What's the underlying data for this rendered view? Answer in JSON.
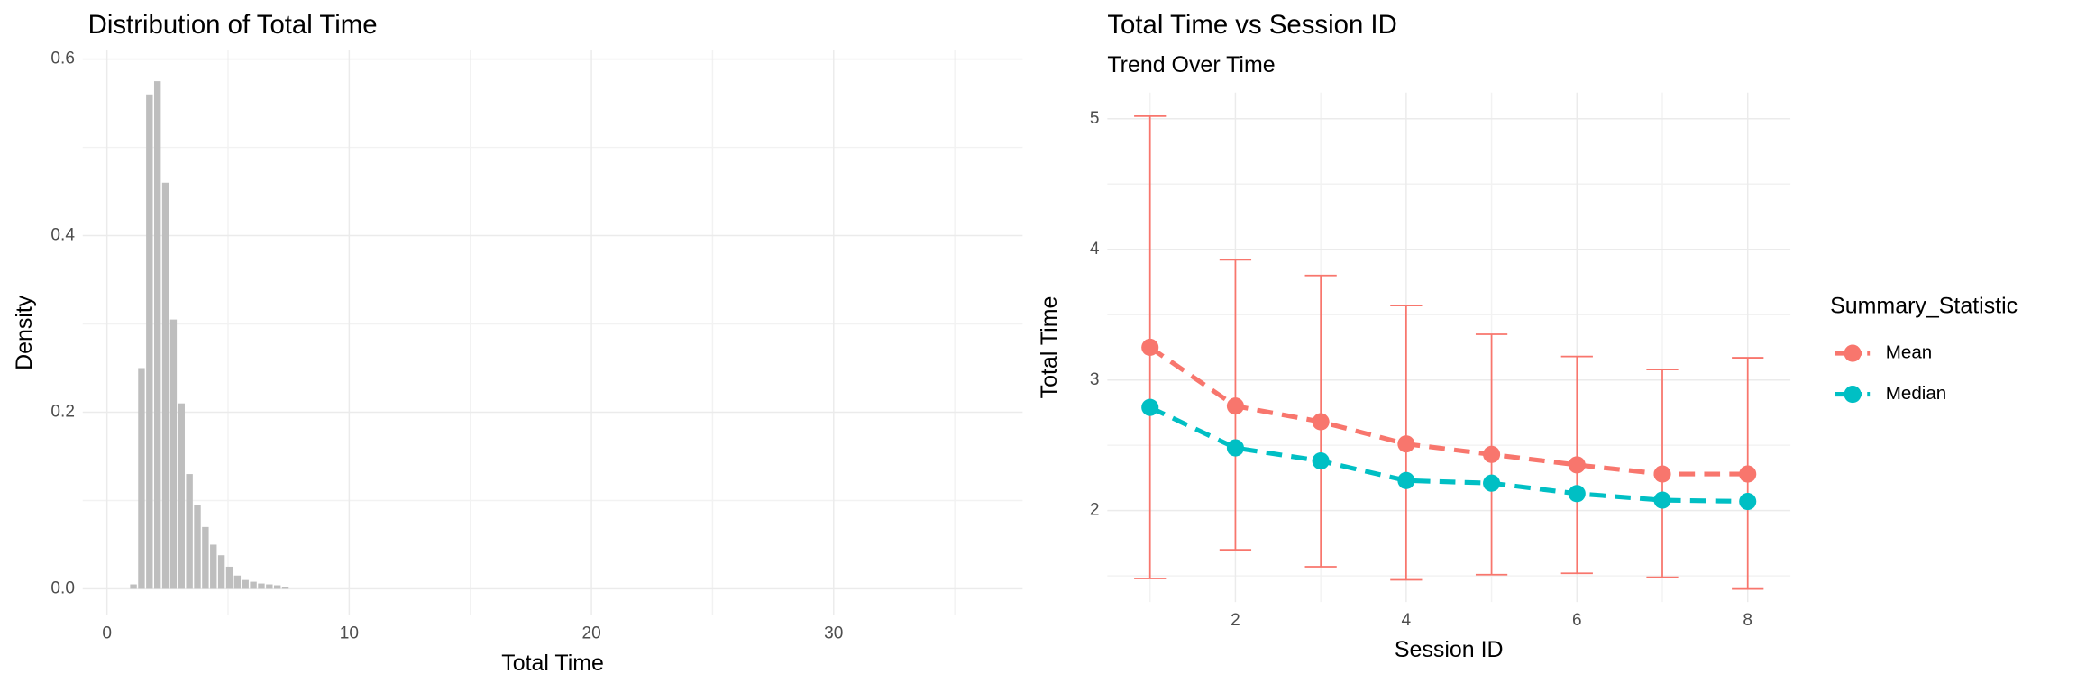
{
  "chart_data": [
    {
      "type": "histogram",
      "title": "Distribution of Total Time",
      "x_label": "Total Time",
      "y_label": "Density",
      "bins": [
        0.93,
        1.26,
        1.59,
        1.92,
        2.25,
        2.58,
        2.91,
        3.24,
        3.57,
        3.9,
        4.23,
        4.56,
        4.89,
        5.22,
        5.55,
        5.88,
        6.21,
        6.54,
        6.87,
        7.2,
        7.53
      ],
      "values": [
        0.005,
        0.25,
        0.56,
        0.575,
        0.46,
        0.305,
        0.21,
        0.13,
        0.095,
        0.07,
        0.05,
        0.038,
        0.025,
        0.015,
        0.01,
        0.008,
        0.006,
        0.005,
        0.004,
        0.002
      ],
      "color": "#bebebe",
      "xlim": [
        -1,
        37.8
      ],
      "xticks": [
        0,
        10,
        20,
        30
      ],
      "minor_xticks": [
        5,
        15,
        25,
        35
      ],
      "ylim": [
        -0.03,
        0.61
      ],
      "yticks": [
        {
          "value": 0,
          "label": "0.0"
        },
        0.2,
        0.4,
        0.6
      ],
      "minor_yticks": [
        0.1,
        0.3,
        0.5
      ],
      "grid": true
    },
    {
      "type": "line",
      "title": "Total Time vs Session ID",
      "subtitle": "Trend Over Time",
      "x_label": "Session ID",
      "y_label": "Total Time",
      "x": [
        1,
        2,
        3,
        4,
        5,
        6,
        7,
        8
      ],
      "series": [
        {
          "name": "Mean",
          "color": "#F8766D",
          "values": [
            3.25,
            2.8,
            2.68,
            2.51,
            2.43,
            2.35,
            2.28,
            2.28
          ],
          "lower": [
            1.48,
            1.7,
            1.57,
            1.47,
            1.51,
            1.52,
            1.49,
            1.4
          ],
          "upper": [
            5.02,
            3.92,
            3.8,
            3.57,
            3.35,
            3.18,
            3.08,
            3.17
          ]
        },
        {
          "name": "Median",
          "color": "#00BFC4",
          "values": [
            2.79,
            2.48,
            2.38,
            2.23,
            2.21,
            2.13,
            2.08,
            2.07
          ]
        }
      ],
      "legend_title": "Summary_Statistic",
      "xlim": [
        0.5,
        8.5
      ],
      "xticks": [
        2,
        4,
        6,
        8
      ],
      "minor_xticks": [
        1,
        3,
        5,
        7
      ],
      "ylim": [
        1.3,
        5.2
      ],
      "yticks": [
        2,
        3,
        4,
        5
      ],
      "minor_yticks": [
        1.5,
        2.5,
        3.5,
        4.5
      ],
      "grid": true
    }
  ]
}
